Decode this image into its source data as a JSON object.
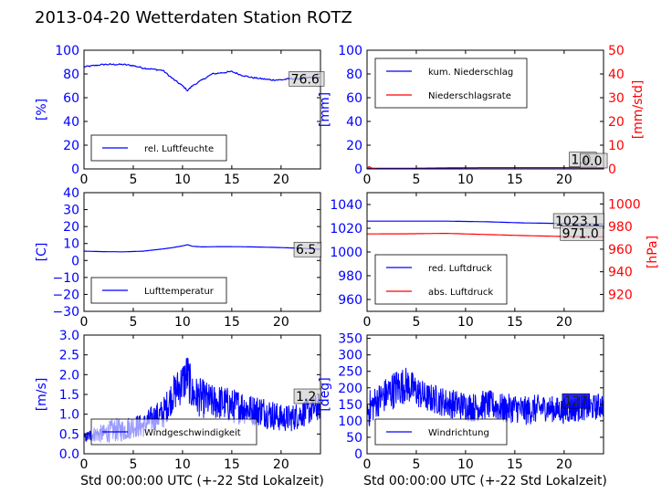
{
  "title": "2013-04-20 Wetterdaten Station ROTZ\u0003",
  "colors": {
    "primary": "#0000ff",
    "secondary": "#ff0000",
    "light": "#8080ff",
    "box_fill": "#d0d0d0"
  },
  "chart_data": [
    {
      "type": "line",
      "ylabel": "[%]",
      "xlim": [
        0,
        24
      ],
      "ylim": [
        0,
        100
      ],
      "xticks": [
        "0",
        "5",
        "10",
        "15",
        "20"
      ],
      "yticks": [
        "0",
        "20",
        "40",
        "60",
        "80",
        "100"
      ],
      "grid": false,
      "legend_position": "lower-left",
      "series": [
        {
          "name": "rel. Luftfeuchte",
          "color": "#0000ff",
          "x": [
            0,
            1,
            2,
            3,
            4,
            5,
            6,
            7,
            8,
            9,
            10,
            10.5,
            11,
            12,
            13,
            14,
            15,
            16,
            17,
            18,
            19,
            20,
            21,
            22,
            23,
            24
          ],
          "y": [
            86,
            87,
            88,
            88,
            88,
            87,
            85,
            84,
            83,
            76,
            70,
            66,
            70,
            75,
            80,
            81,
            82,
            79,
            77,
            76,
            75,
            75,
            76,
            76,
            77,
            77
          ]
        }
      ],
      "annotation": "76.6"
    },
    {
      "type": "line",
      "ylabel": "[mm]",
      "y2label": "[mm/std]",
      "xlim": [
        0,
        24
      ],
      "ylim": [
        0,
        100
      ],
      "y2lim": [
        0,
        50
      ],
      "xticks": [
        "0",
        "5",
        "10",
        "15",
        "20"
      ],
      "yticks": [
        "0",
        "20",
        "40",
        "60",
        "80",
        "100"
      ],
      "y2ticks": [
        "0",
        "10",
        "20",
        "30",
        "40",
        "50"
      ],
      "grid": false,
      "legend_position": "upper-left",
      "series": [
        {
          "name": "kum. Niederschlag",
          "color": "#0000ff",
          "axis": "left",
          "x": [
            0,
            4,
            8,
            12,
            16,
            20,
            24
          ],
          "y": [
            0.5,
            0.5,
            0.8,
            1.0,
            1.0,
            1.0,
            1.0
          ]
        },
        {
          "name": "Niederschlagsrate",
          "color": "#ff0000",
          "axis": "right",
          "x": [
            0,
            0.2,
            0.5,
            1,
            24
          ],
          "y": [
            0,
            1,
            0.3,
            0,
            0
          ]
        }
      ],
      "annotations": [
        "1.0",
        "0.0"
      ]
    },
    {
      "type": "line",
      "ylabel": "[C]",
      "xlim": [
        0,
        24
      ],
      "ylim": [
        -30,
        40
      ],
      "xticks": [
        "0",
        "5",
        "10",
        "15",
        "20"
      ],
      "yticks": [
        "−30",
        "−20",
        "−10",
        "0",
        "10",
        "20",
        "30",
        "40"
      ],
      "grid": false,
      "legend_position": "lower-left",
      "series": [
        {
          "name": "Lufttemperatur",
          "color": "#0000ff",
          "x": [
            0,
            2,
            4,
            6,
            8,
            9,
            10,
            10.5,
            11,
            12,
            14,
            16,
            18,
            20,
            22,
            24
          ],
          "y": [
            5.5,
            5.2,
            5.1,
            5.5,
            6.8,
            7.6,
            8.6,
            9.3,
            8.4,
            8.0,
            8.2,
            8.1,
            7.9,
            7.6,
            7.2,
            6.6
          ]
        }
      ],
      "annotation": "6.5"
    },
    {
      "type": "line",
      "y2label": "[hPa]",
      "xlim": [
        0,
        24
      ],
      "ylim": [
        950,
        1050
      ],
      "y2lim": [
        905,
        1010
      ],
      "xticks": [
        "0",
        "5",
        "10",
        "15",
        "20"
      ],
      "yticks": [
        "960",
        "980",
        "1000",
        "1020",
        "1040"
      ],
      "y2ticks": [
        "920",
        "940",
        "960",
        "980",
        "1000"
      ],
      "grid": false,
      "legend_position": "lower-left",
      "series": [
        {
          "name": "red. Luftdruck",
          "color": "#0000ff",
          "axis": "left",
          "x": [
            0,
            4,
            8,
            12,
            16,
            20,
            24
          ],
          "y": [
            1026,
            1026,
            1026,
            1025.5,
            1024.5,
            1024,
            1023.5
          ]
        },
        {
          "name": "abs. Luftdruck",
          "color": "#ff0000",
          "axis": "right",
          "x": [
            0,
            4,
            8,
            12,
            16,
            20,
            24
          ],
          "y": [
            973.5,
            973.6,
            974,
            973,
            972,
            971.2,
            971
          ]
        }
      ],
      "annotations": [
        "1023.1",
        "971.0"
      ]
    },
    {
      "type": "line",
      "ylabel": "[m/s]",
      "xlabel": "Std 00:00:00 UTC (+-22 Std Lokalzeit)",
      "xlim": [
        0,
        24
      ],
      "ylim": [
        0,
        3.0
      ],
      "xticks": [
        "0",
        "5",
        "10",
        "15",
        "20"
      ],
      "yticks": [
        "0.0",
        "0.5",
        "1.0",
        "1.5",
        "2.0",
        "2.5",
        "3.0"
      ],
      "grid": false,
      "legend_position": "lower-left",
      "series": [
        {
          "name": "Windgeschwindigkeit",
          "color": "#0000ff",
          "x": [
            0,
            1,
            2,
            3,
            4,
            5,
            6,
            7,
            8,
            9,
            10,
            10.5,
            11,
            12,
            13,
            14,
            15,
            16,
            17,
            18,
            19,
            20,
            21,
            22,
            23,
            24
          ],
          "y": [
            0.4,
            0.5,
            0.5,
            0.6,
            0.6,
            0.7,
            0.7,
            0.9,
            1.0,
            1.5,
            1.8,
            2.0,
            1.5,
            1.4,
            1.3,
            1.3,
            1.2,
            1.2,
            1.1,
            1.1,
            1.0,
            0.9,
            0.9,
            1.0,
            1.1,
            1.2
          ],
          "noise": [
            0.12,
            0.2,
            0.25,
            0.3,
            0.3,
            0.3,
            0.3,
            0.35,
            0.4,
            0.45,
            0.55,
            0.6,
            0.5,
            0.5,
            0.45,
            0.45,
            0.45,
            0.45,
            0.4,
            0.4,
            0.4,
            0.35,
            0.35,
            0.35,
            0.35,
            0.35
          ]
        }
      ],
      "annotation": "1.2"
    },
    {
      "type": "line",
      "ylabel": "[deg]",
      "xlabel": "Std 00:00:00 UTC (+-22 Std Lokalzeit)",
      "xlim": [
        0,
        24
      ],
      "ylim": [
        0,
        360
      ],
      "xticks": [
        "0",
        "5",
        "10",
        "15",
        "20"
      ],
      "yticks": [
        "0",
        "50",
        "100",
        "150",
        "200",
        "250",
        "300",
        "350"
      ],
      "grid": false,
      "legend_position": "lower-left",
      "series": [
        {
          "name": "Windrichtung",
          "color": "#0000ff",
          "x": [
            0,
            1,
            2,
            3,
            4,
            5,
            6,
            7,
            8,
            9,
            10,
            11,
            12,
            13,
            14,
            15,
            16,
            17,
            18,
            19,
            20,
            21,
            22,
            23,
            24
          ],
          "y": [
            130,
            160,
            180,
            200,
            210,
            190,
            170,
            165,
            155,
            150,
            145,
            140,
            150,
            145,
            135,
            140,
            130,
            135,
            140,
            135,
            130,
            135,
            140,
            140,
            150
          ],
          "noise": [
            60,
            50,
            55,
            60,
            55,
            50,
            45,
            45,
            45,
            45,
            45,
            45,
            45,
            45,
            45,
            45,
            45,
            45,
            40,
            40,
            40,
            40,
            40,
            40,
            40
          ]
        }
      ],
      "annotation": "127"
    }
  ]
}
